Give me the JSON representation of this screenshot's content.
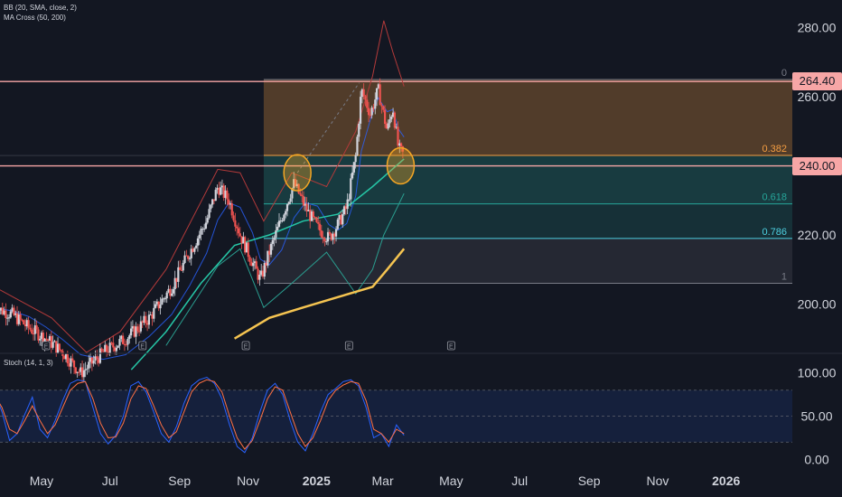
{
  "indicators": {
    "bb_label": "BB (20, SMA, close, 2)",
    "ma_label": "MA Cross (50, 200)",
    "stoch_label": "Stoch (14, 1, 3)"
  },
  "price_tags": [
    {
      "label": "264.40",
      "value": 264.4
    },
    {
      "label": "240.00",
      "value": 240.0
    }
  ],
  "colors": {
    "background": "#131722",
    "candle_up": "#d1d4dc",
    "candle_down": "#ef5350",
    "bb_upper": "#b33a3a",
    "bb_lower": "#2a9d8f",
    "bb_mid": "#2962ff",
    "ma_fast": "#26c6a6",
    "ma_slow": "#f5c451",
    "fib_0_382": "#f59e42",
    "fib_0_618": "#26a69a",
    "fib_0_786": "#4dd0e1",
    "stoch_k": "#2962ff",
    "stoch_d": "#ff7043",
    "circle": "#f5a623"
  },
  "chart_data": [
    {
      "type": "candlestick",
      "title": "",
      "x_axis": {
        "tick_labels": [
          "May",
          "Jul",
          "Sep",
          "Nov",
          "2025",
          "Mar",
          "May",
          "Jul",
          "Sep",
          "Nov",
          "2026"
        ],
        "tick_dates": [
          "2024-05",
          "2024-07",
          "2024-09",
          "2024-11",
          "2025-01",
          "2025-03",
          "2025-05",
          "2025-07",
          "2025-09",
          "2025-11",
          "2026-01"
        ]
      },
      "y_axis": {
        "tick_labels": [
          "200.00",
          "220.00",
          "240.00",
          "260.00",
          "280.00"
        ],
        "ticks": [
          200,
          220,
          240,
          260,
          280
        ],
        "range": [
          186,
          288
        ]
      },
      "horizontal_lines": [
        264.4,
        240.0
      ],
      "fibonacci": {
        "levels": [
          {
            "label": "0",
            "value": 265
          },
          {
            "label": "0.382",
            "value": 243
          },
          {
            "label": "0.618",
            "value": 229
          },
          {
            "label": "0.786",
            "value": 219
          },
          {
            "label": "1",
            "value": 206
          }
        ],
        "start": "2024-11-15"
      },
      "price_path": [
        {
          "date": "2024-03-20",
          "close": 199
        },
        {
          "date": "2024-04-05",
          "close": 197
        },
        {
          "date": "2024-04-20",
          "close": 193
        },
        {
          "date": "2024-05-05",
          "close": 190
        },
        {
          "date": "2024-05-20",
          "close": 186
        },
        {
          "date": "2024-06-05",
          "close": 180
        },
        {
          "date": "2024-06-25",
          "close": 186
        },
        {
          "date": "2024-07-15",
          "close": 190
        },
        {
          "date": "2024-08-05",
          "close": 196
        },
        {
          "date": "2024-08-25",
          "close": 205
        },
        {
          "date": "2024-09-10",
          "close": 215
        },
        {
          "date": "2024-09-25",
          "close": 224
        },
        {
          "date": "2024-10-05",
          "close": 234
        },
        {
          "date": "2024-10-15",
          "close": 230
        },
        {
          "date": "2024-10-25",
          "close": 220
        },
        {
          "date": "2024-11-05",
          "close": 212
        },
        {
          "date": "2024-11-12",
          "close": 207
        },
        {
          "date": "2024-11-20",
          "close": 215
        },
        {
          "date": "2024-12-01",
          "close": 225
        },
        {
          "date": "2024-12-12",
          "close": 235
        },
        {
          "date": "2024-12-22",
          "close": 228
        },
        {
          "date": "2025-01-02",
          "close": 222
        },
        {
          "date": "2025-01-12",
          "close": 219
        },
        {
          "date": "2025-01-20",
          "close": 223
        },
        {
          "date": "2025-01-28",
          "close": 228
        },
        {
          "date": "2025-02-05",
          "close": 243
        },
        {
          "date": "2025-02-10",
          "close": 262
        },
        {
          "date": "2025-02-18",
          "close": 255
        },
        {
          "date": "2025-02-25",
          "close": 262
        },
        {
          "date": "2025-03-05",
          "close": 250
        },
        {
          "date": "2025-03-10",
          "close": 257
        },
        {
          "date": "2025-03-15",
          "close": 245
        },
        {
          "date": "2025-03-20",
          "close": 243
        }
      ],
      "bb_upper_path": [
        {
          "date": "2024-03-20",
          "value": 205
        },
        {
          "date": "2024-05-10",
          "value": 196
        },
        {
          "date": "2024-06-10",
          "value": 186
        },
        {
          "date": "2024-07-10",
          "value": 192
        },
        {
          "date": "2024-08-20",
          "value": 210
        },
        {
          "date": "2024-10-05",
          "value": 239
        },
        {
          "date": "2024-10-25",
          "value": 238
        },
        {
          "date": "2024-11-15",
          "value": 224
        },
        {
          "date": "2024-12-10",
          "value": 238
        },
        {
          "date": "2025-01-10",
          "value": 234
        },
        {
          "date": "2025-02-05",
          "value": 250
        },
        {
          "date": "2025-02-20",
          "value": 266
        },
        {
          "date": "2025-03-02",
          "value": 282
        },
        {
          "date": "2025-03-10",
          "value": 273
        },
        {
          "date": "2025-03-20",
          "value": 263
        }
      ],
      "bb_lower_path": [
        {
          "date": "2024-08-20",
          "value": 188
        },
        {
          "date": "2024-10-05",
          "value": 211
        },
        {
          "date": "2024-10-25",
          "value": 216
        },
        {
          "date": "2024-11-15",
          "value": 199
        },
        {
          "date": "2024-12-10",
          "value": 206
        },
        {
          "date": "2025-01-10",
          "value": 215
        },
        {
          "date": "2025-02-05",
          "value": 203
        },
        {
          "date": "2025-02-20",
          "value": 210
        },
        {
          "date": "2025-03-02",
          "value": 220
        },
        {
          "date": "2025-03-20",
          "value": 232
        }
      ],
      "ma50_path": [
        {
          "date": "2024-07-20",
          "value": 181
        },
        {
          "date": "2024-08-20",
          "value": 192
        },
        {
          "date": "2024-09-20",
          "value": 206
        },
        {
          "date": "2024-10-20",
          "value": 217
        },
        {
          "date": "2024-11-20",
          "value": 220
        },
        {
          "date": "2024-12-20",
          "value": 224
        },
        {
          "date": "2025-01-20",
          "value": 226
        },
        {
          "date": "2025-02-20",
          "value": 234
        },
        {
          "date": "2025-03-20",
          "value": 242
        }
      ],
      "ma200_path": [
        {
          "date": "2024-10-20",
          "value": 190
        },
        {
          "date": "2024-11-20",
          "value": 196
        },
        {
          "date": "2024-12-20",
          "value": 199
        },
        {
          "date": "2025-01-20",
          "value": 202
        },
        {
          "date": "2025-02-20",
          "value": 205
        },
        {
          "date": "2025-03-05",
          "value": 210
        },
        {
          "date": "2025-03-20",
          "value": 216
        }
      ],
      "annotations": [
        {
          "type": "circle",
          "date": "2024-12-15",
          "value": 238
        },
        {
          "type": "circle",
          "date": "2025-03-17",
          "value": 240
        }
      ],
      "event_markers": [
        {
          "label": "E",
          "date": "2024-05-05"
        },
        {
          "label": "E",
          "date": "2024-07-30"
        },
        {
          "label": "E",
          "date": "2024-10-30"
        },
        {
          "label": "E",
          "date": "2025-01-30"
        },
        {
          "label": "E",
          "date": "2025-05-01"
        }
      ]
    },
    {
      "type": "line",
      "title": "",
      "y_axis": {
        "tick_labels": [
          "0.00",
          "50.00",
          "100.00"
        ],
        "ticks": [
          0,
          50,
          100
        ],
        "range": [
          -12,
          108
        ]
      },
      "bands": [
        20,
        80
      ],
      "series": [
        {
          "values_k": [
            78,
            55,
            22,
            30,
            52,
            72,
            35,
            25,
            45,
            68,
            88,
            92,
            90,
            60,
            30,
            18,
            28,
            50,
            85,
            90,
            78,
            55,
            30,
            20,
            38,
            65,
            85,
            92,
            95,
            88,
            70,
            40,
            15,
            8,
            25,
            55,
            80,
            88,
            75,
            45,
            20,
            10,
            30,
            55,
            75,
            82,
            90,
            92,
            85,
            60,
            25,
            30,
            15,
            40,
            28
          ],
          "values_d": [
            75,
            60,
            35,
            30,
            45,
            62,
            45,
            30,
            40,
            60,
            80,
            88,
            90,
            70,
            42,
            25,
            26,
            42,
            70,
            85,
            82,
            62,
            40,
            25,
            32,
            55,
            78,
            88,
            92,
            90,
            78,
            50,
            25,
            12,
            22,
            45,
            70,
            84,
            80,
            55,
            30,
            15,
            25,
            45,
            68,
            80,
            86,
            90,
            88,
            68,
            35,
            30,
            20,
            35,
            30
          ]
        }
      ],
      "x_range": [
        "2024-03-20",
        "2025-03-20"
      ]
    }
  ]
}
